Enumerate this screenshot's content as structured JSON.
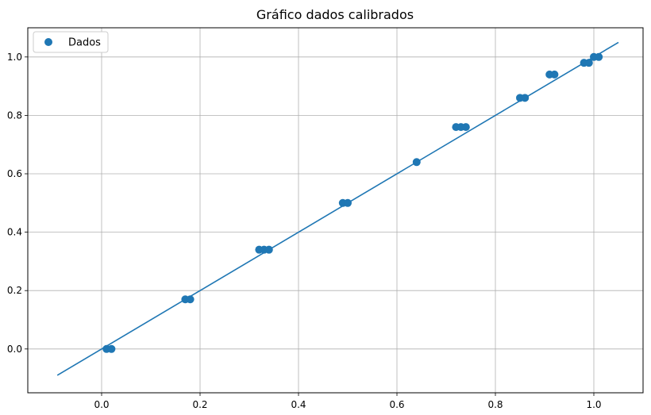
{
  "chart_data": {
    "type": "scatter",
    "title": "Gráfico dados calibrados",
    "xlabel": "",
    "ylabel": "",
    "xlim": [
      -0.15,
      1.1
    ],
    "ylim": [
      -0.15,
      1.1
    ],
    "xticks": [
      "0.0",
      "0.2",
      "0.4",
      "0.6",
      "0.8",
      "1.0"
    ],
    "yticks": [
      "0.0",
      "0.2",
      "0.4",
      "0.6",
      "0.8",
      "1.0"
    ],
    "grid": true,
    "legend": {
      "position": "top-left",
      "entries": [
        "Dados"
      ]
    },
    "colors": {
      "series": "#1f77b4",
      "grid": "#b0b0b0",
      "axes": "#000000"
    },
    "series": [
      {
        "name": "Dados",
        "kind": "scatter",
        "points": [
          [
            0.01,
            0.0
          ],
          [
            0.02,
            0.0
          ],
          [
            0.17,
            0.17
          ],
          [
            0.18,
            0.17
          ],
          [
            0.32,
            0.34
          ],
          [
            0.33,
            0.34
          ],
          [
            0.34,
            0.34
          ],
          [
            0.49,
            0.5
          ],
          [
            0.5,
            0.5
          ],
          [
            0.64,
            0.64
          ],
          [
            0.72,
            0.76
          ],
          [
            0.73,
            0.76
          ],
          [
            0.74,
            0.76
          ],
          [
            0.85,
            0.86
          ],
          [
            0.86,
            0.86
          ],
          [
            0.91,
            0.94
          ],
          [
            0.92,
            0.94
          ],
          [
            0.98,
            0.98
          ],
          [
            0.99,
            0.98
          ],
          [
            1.0,
            1.0
          ],
          [
            1.01,
            1.0
          ]
        ]
      },
      {
        "kind": "line",
        "points": [
          [
            -0.09,
            -0.09
          ],
          [
            1.05,
            1.05
          ]
        ]
      }
    ]
  }
}
